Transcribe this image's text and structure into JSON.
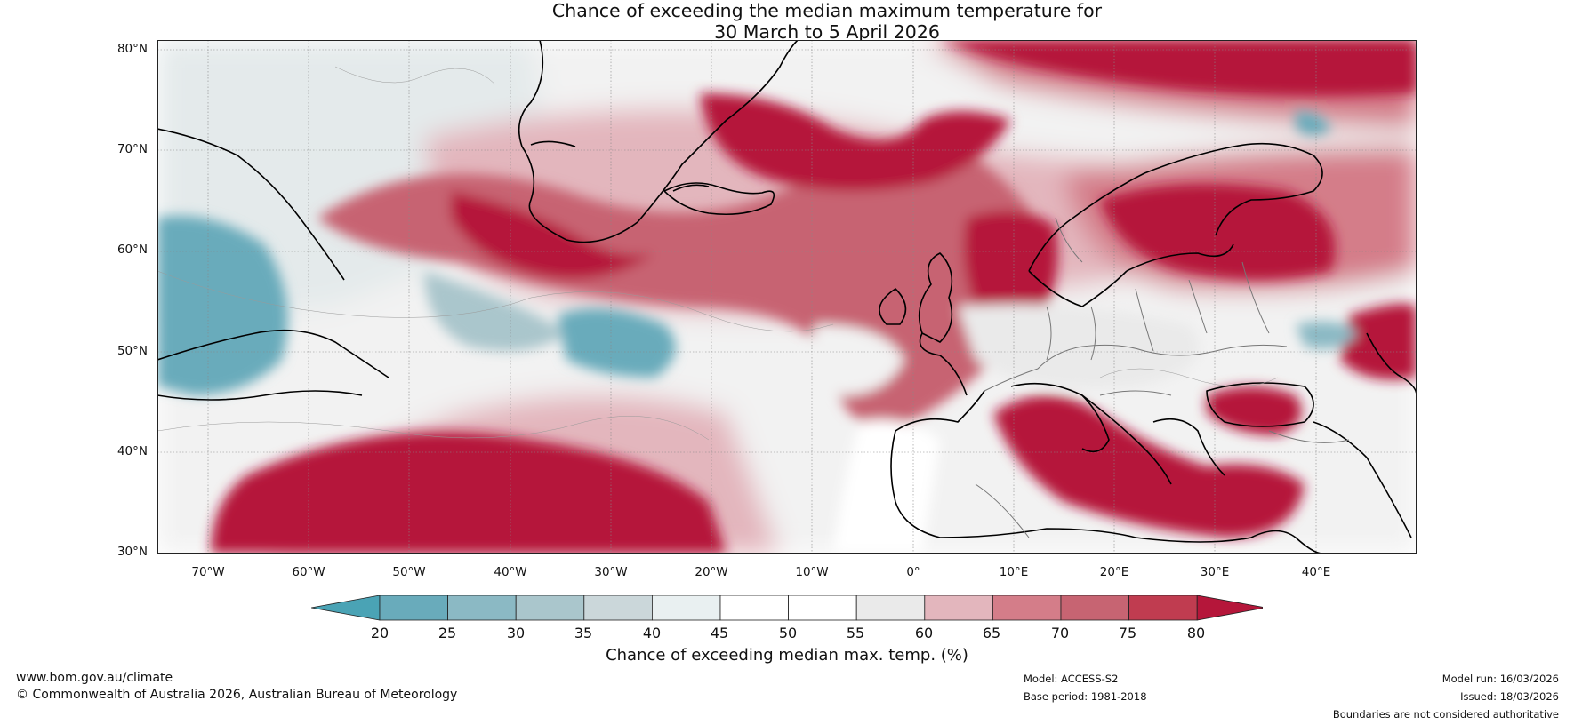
{
  "title": {
    "line1": "Chance of exceeding the median maximum temperature for",
    "line2": "30 March to 5 April 2026"
  },
  "map": {
    "lat_labels": [
      "80°N",
      "70°N",
      "60°N",
      "50°N",
      "40°N",
      "30°N"
    ],
    "lon_labels": [
      "70°W",
      "60°W",
      "50°W",
      "40°W",
      "30°W",
      "20°W",
      "10°W",
      "0°",
      "10°E",
      "20°E",
      "30°E",
      "40°E"
    ],
    "lat_range": [
      30,
      81
    ],
    "lon_range": [
      -75,
      50
    ]
  },
  "colorbar": {
    "ticks": [
      "20",
      "25",
      "30",
      "35",
      "40",
      "45",
      "50",
      "55",
      "60",
      "65",
      "70",
      "75",
      "80"
    ],
    "colors": [
      "#4aa3b5",
      "#69abbb",
      "#8bb9c4",
      "#aac6cc",
      "#cbd7da",
      "#e9f0f1",
      "#ffffff",
      "#ffffff",
      "#eaeaea",
      "#e3b6bd",
      "#d47d89",
      "#c76472",
      "#c03c50",
      "#b5163a"
    ],
    "label": "Chance of exceeding median max. temp. (%)"
  },
  "footer": {
    "url": "www.bom.gov.au/climate",
    "copyright": "© Commonwealth of Australia 2026, Australian Bureau of Meteorology",
    "model": "Model: ACCESS-S2",
    "base_period": "Base period: 1981-2018",
    "model_run": "Model run: 16/03/2026",
    "issued": "Issued: 18/03/2026",
    "disclaimer": "Boundaries are not considered authoritative"
  },
  "colors": {
    "strong_warm": "#b5163a",
    "warm": "#c76472",
    "light_warm": "#e3b6bd",
    "neutral": "#eaeaea",
    "cool": "#8bb9c4",
    "strong_cool": "#4aa3b5"
  }
}
